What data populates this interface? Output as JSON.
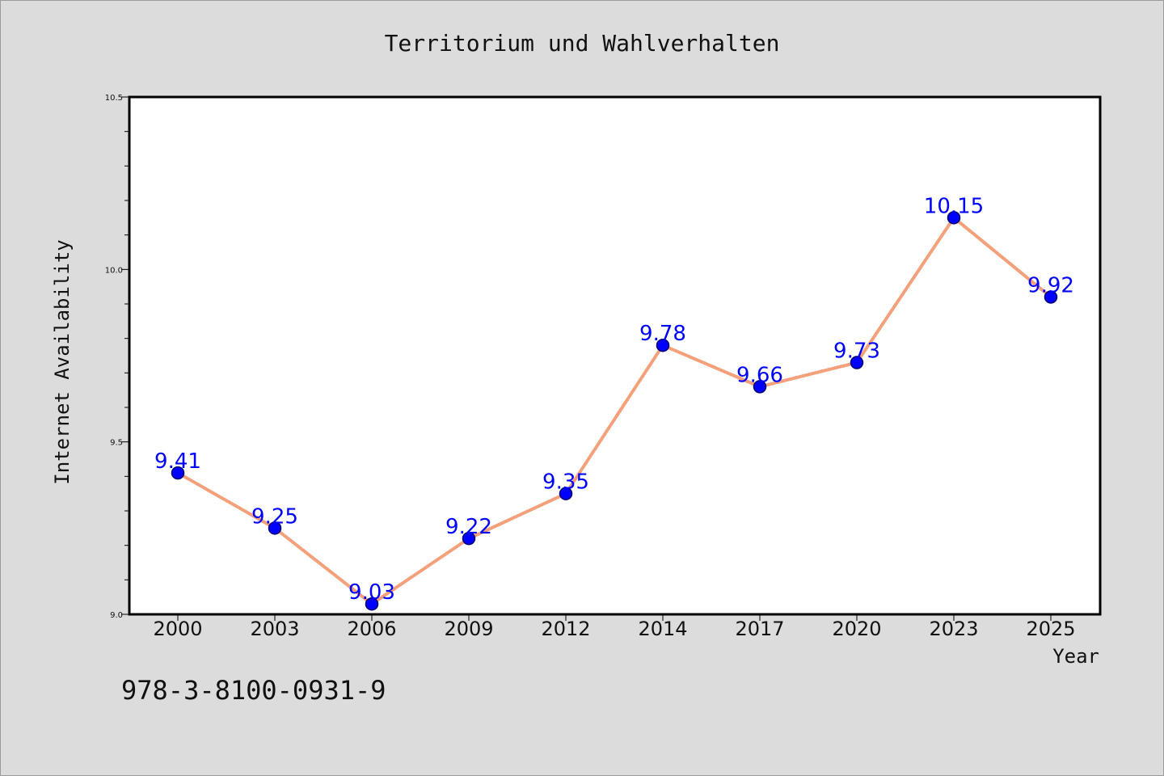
{
  "chart_data": {
    "type": "line",
    "title": "Territorium und Wahlverhalten",
    "xlabel": "Year",
    "ylabel": "Internet Availability",
    "categories": [
      "2000",
      "2003",
      "2006",
      "2009",
      "2012",
      "2014",
      "2017",
      "2020",
      "2023",
      "2025"
    ],
    "series": [
      {
        "values": [
          9.41,
          9.25,
          9.03,
          9.22,
          9.35,
          9.78,
          9.66,
          9.73,
          10.15,
          9.92
        ],
        "color": "#f4a07a",
        "marker_color": "#0000ff"
      }
    ],
    "data_labels": [
      "9.41",
      "9.25",
      "9.03",
      "9.22",
      "9.35",
      "9.78",
      "9.66",
      "9.73",
      "10.15",
      "9.92"
    ],
    "ylim": [
      9.0,
      10.5
    ],
    "yticks": [
      "9.0",
      "9.5",
      "10.0",
      "10.5"
    ],
    "grid": false,
    "legend": "none"
  },
  "footer": {
    "code": "978-3-8100-0931-9"
  }
}
